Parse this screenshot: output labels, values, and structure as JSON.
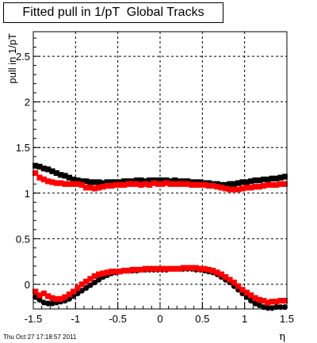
{
  "chart_data": {
    "type": "scatter",
    "title": "Fitted pull in 1/pT  Global Tracks",
    "xlabel": "η",
    "ylabel": "pull in 1/pT",
    "xlim": [
      -1.5,
      1.5
    ],
    "ylim": [
      -0.27,
      2.77
    ],
    "x_ticks": [
      -1.5,
      -1,
      -0.5,
      0,
      0.5,
      1,
      1.5
    ],
    "x_tick_labels": [
      "-1.5",
      "-1",
      "-0.5",
      "0",
      "0.5",
      "1",
      "1.5"
    ],
    "y_ticks": [
      0,
      0.5,
      1,
      1.5,
      2,
      2.5
    ],
    "y_tick_labels": [
      "0",
      "0.5",
      "1",
      "1.5",
      "2",
      "2.5"
    ],
    "grid": true,
    "x": [
      -1.475,
      -1.425,
      -1.375,
      -1.325,
      -1.275,
      -1.225,
      -1.175,
      -1.125,
      -1.075,
      -1.025,
      -0.975,
      -0.925,
      -0.875,
      -0.825,
      -0.775,
      -0.725,
      -0.675,
      -0.625,
      -0.575,
      -0.525,
      -0.475,
      -0.425,
      -0.375,
      -0.325,
      -0.275,
      -0.225,
      -0.175,
      -0.125,
      -0.075,
      -0.025,
      0.025,
      0.075,
      0.125,
      0.175,
      0.225,
      0.275,
      0.325,
      0.375,
      0.425,
      0.475,
      0.525,
      0.575,
      0.625,
      0.675,
      0.725,
      0.775,
      0.825,
      0.875,
      0.925,
      0.975,
      1.025,
      1.075,
      1.125,
      1.175,
      1.225,
      1.275,
      1.325,
      1.375,
      1.425,
      1.475
    ],
    "series": [
      {
        "color": "#000000",
        "marker": "square",
        "values": [
          1.3,
          1.29,
          1.27,
          1.26,
          1.24,
          1.22,
          1.2,
          1.19,
          1.17,
          1.15,
          1.14,
          1.13,
          1.13,
          1.12,
          1.12,
          1.12,
          1.11,
          1.12,
          1.12,
          1.12,
          1.12,
          1.13,
          1.13,
          1.13,
          1.14,
          1.14,
          1.13,
          1.14,
          1.14,
          1.14,
          1.14,
          1.14,
          1.13,
          1.14,
          1.13,
          1.13,
          1.13,
          1.12,
          1.12,
          1.12,
          1.11,
          1.11,
          1.1,
          1.1,
          1.09,
          1.09,
          1.1,
          1.1,
          1.11,
          1.12,
          1.12,
          1.13,
          1.14,
          1.14,
          1.15,
          1.15,
          1.16,
          1.16,
          1.17,
          1.18
        ]
      },
      {
        "color": "#000000",
        "marker": "circle",
        "values": [
          -0.14,
          -0.17,
          -0.2,
          -0.21,
          -0.21,
          -0.2,
          -0.19,
          -0.18,
          -0.16,
          -0.13,
          -0.1,
          -0.07,
          -0.04,
          -0.01,
          0.02,
          0.05,
          0.08,
          0.1,
          0.12,
          0.13,
          0.14,
          0.15,
          0.15,
          0.15,
          0.15,
          0.16,
          0.16,
          0.16,
          0.16,
          0.16,
          0.16,
          0.16,
          0.17,
          0.17,
          0.17,
          0.17,
          0.17,
          0.17,
          0.16,
          0.16,
          0.15,
          0.14,
          0.13,
          0.11,
          0.08,
          0.05,
          0.02,
          -0.02,
          -0.06,
          -0.1,
          -0.14,
          -0.18,
          -0.21,
          -0.23,
          -0.25,
          -0.26,
          -0.26,
          -0.25,
          -0.25,
          -0.25
        ]
      },
      {
        "color": "#ff0000",
        "marker": "square",
        "values": [
          1.22,
          1.17,
          1.15,
          1.13,
          1.12,
          1.11,
          1.11,
          1.1,
          1.1,
          1.1,
          1.1,
          1.09,
          1.06,
          1.06,
          1.05,
          1.06,
          1.07,
          1.08,
          1.08,
          1.09,
          1.09,
          1.09,
          1.1,
          1.1,
          1.1,
          1.09,
          1.1,
          1.09,
          1.11,
          1.1,
          1.1,
          1.11,
          1.1,
          1.1,
          1.1,
          1.1,
          1.1,
          1.09,
          1.09,
          1.09,
          1.09,
          1.08,
          1.08,
          1.07,
          1.06,
          1.05,
          1.04,
          1.04,
          1.04,
          1.05,
          1.06,
          1.06,
          1.07,
          1.07,
          1.08,
          1.09,
          1.09,
          1.09,
          1.1,
          1.1
        ]
      },
      {
        "color": "#ff0000",
        "marker": "square",
        "values": [
          -0.08,
          -0.12,
          -0.1,
          -0.13,
          -0.15,
          -0.16,
          -0.16,
          -0.14,
          -0.11,
          -0.08,
          -0.04,
          0.0,
          0.03,
          0.06,
          0.09,
          0.11,
          0.12,
          0.13,
          0.14,
          0.14,
          0.14,
          0.15,
          0.15,
          0.16,
          0.16,
          0.16,
          0.17,
          0.17,
          0.17,
          0.17,
          0.17,
          0.17,
          0.17,
          0.17,
          0.17,
          0.18,
          0.18,
          0.18,
          0.18,
          0.17,
          0.17,
          0.16,
          0.15,
          0.13,
          0.11,
          0.08,
          0.05,
          0.02,
          -0.02,
          -0.06,
          -0.09,
          -0.12,
          -0.15,
          -0.17,
          -0.18,
          -0.2,
          -0.19,
          -0.19,
          -0.18,
          -0.18
        ]
      }
    ]
  },
  "footer": {
    "timestamp": "Thu Oct 27 17:18:57 2011"
  }
}
